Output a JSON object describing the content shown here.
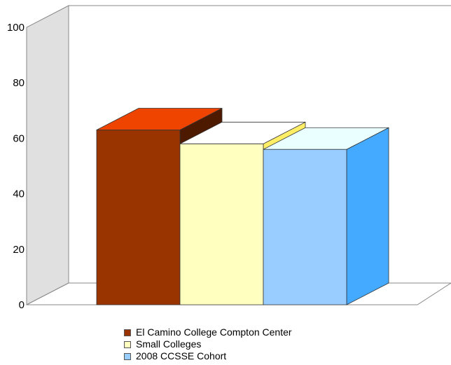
{
  "chart_data": {
    "type": "bar",
    "title": "",
    "xlabel": "",
    "ylabel": "",
    "ylim": [
      0,
      100
    ],
    "yticks": [
      0,
      20,
      40,
      60,
      80,
      100
    ],
    "grid": false,
    "legend_position": "bottom",
    "style": "3d-clustered",
    "categories": [
      ""
    ],
    "series": [
      {
        "name": "El Camino College Compton Center",
        "values": [
          63
        ],
        "color": "#993300",
        "top_color": "#ee4400",
        "side_color": "#4d1a00"
      },
      {
        "name": "Small Colleges",
        "values": [
          58
        ],
        "color": "#ffffc0",
        "top_color": "#ffffff",
        "side_color": "#ffee66"
      },
      {
        "name": "2008 CCSSE Cohort",
        "values": [
          56
        ],
        "color": "#99ccff",
        "top_color": "#eaffff",
        "side_color": "#44aaff"
      }
    ]
  }
}
